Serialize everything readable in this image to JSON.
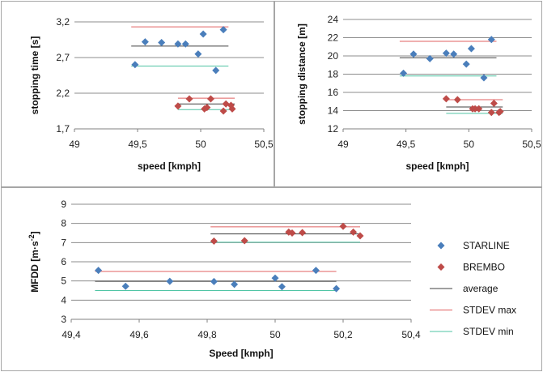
{
  "chart_data": [
    {
      "type": "scatter",
      "xlabel": "speed [kmph]",
      "ylabel": "stopping time [s]",
      "xlim": [
        49,
        50.5
      ],
      "ylim": [
        1.7,
        3.2
      ],
      "xticks": [
        49,
        49.5,
        50,
        50.5
      ],
      "yticks": [
        1.7,
        2.2,
        2.7,
        3.2
      ],
      "xtick_labels": [
        "49",
        "49,5",
        "50",
        "50,5"
      ],
      "ytick_labels": [
        "1,7",
        "2,2",
        "2,7",
        "3,2"
      ],
      "grid": "horizontal",
      "series": [
        {
          "name": "STARLINE",
          "marker": "diamond",
          "color": "#4a7ebb",
          "x": [
            49.48,
            49.56,
            49.69,
            49.82,
            49.88,
            49.98,
            50.02,
            50.12,
            50.18
          ],
          "y": [
            2.6,
            2.92,
            2.91,
            2.89,
            2.89,
            2.75,
            3.03,
            2.52,
            3.09
          ]
        },
        {
          "name": "BREMBO",
          "marker": "diamond",
          "color": "#be4b48",
          "x": [
            49.82,
            49.91,
            50.03,
            50.05,
            50.08,
            50.18,
            50.2,
            50.24,
            50.25
          ],
          "y": [
            2.02,
            2.12,
            1.98,
            2.0,
            2.12,
            1.95,
            2.05,
            2.03,
            1.98
          ]
        }
      ],
      "reference_lines": [
        {
          "name": "average",
          "color": "#404040",
          "segments": [
            {
              "x": [
                49.45,
                50.22
              ],
              "y": 2.86
            },
            {
              "x": [
                49.82,
                50.27
              ],
              "y": 2.05
            }
          ]
        },
        {
          "name": "STDEV max",
          "color": "#e06060",
          "segments": [
            {
              "x": [
                49.45,
                50.22
              ],
              "y": 3.13
            },
            {
              "x": [
                49.82,
                50.27
              ],
              "y": 2.13
            }
          ]
        },
        {
          "name": "STDEV min",
          "color": "#4fc4a4",
          "segments": [
            {
              "x": [
                49.45,
                50.22
              ],
              "y": 2.58
            },
            {
              "x": [
                49.82,
                50.27
              ],
              "y": 1.97
            }
          ]
        }
      ]
    },
    {
      "type": "scatter",
      "xlabel": "speed [kmph]",
      "ylabel": "stopping distance [m]",
      "xlim": [
        49,
        50.5
      ],
      "ylim": [
        12,
        24
      ],
      "xticks": [
        49,
        49.5,
        50,
        50.5
      ],
      "yticks": [
        12,
        14,
        16,
        18,
        20,
        22,
        24
      ],
      "xtick_labels": [
        "49",
        "49,5",
        "50",
        "50,5"
      ],
      "ytick_labels": [
        "12",
        "14",
        "16",
        "18",
        "20",
        "22",
        "24"
      ],
      "grid": "horizontal",
      "series": [
        {
          "name": "STARLINE",
          "marker": "diamond",
          "color": "#4a7ebb",
          "x": [
            49.48,
            49.56,
            49.69,
            49.82,
            49.88,
            49.98,
            50.02,
            50.12,
            50.18
          ],
          "y": [
            18.1,
            20.2,
            19.7,
            20.3,
            20.2,
            19.1,
            20.8,
            17.6,
            21.8
          ]
        },
        {
          "name": "BREMBO",
          "marker": "diamond",
          "color": "#be4b48",
          "x": [
            49.82,
            49.91,
            50.03,
            50.05,
            50.08,
            50.18,
            50.2,
            50.24,
            50.25
          ],
          "y": [
            15.3,
            15.2,
            14.2,
            14.2,
            14.2,
            13.8,
            14.8,
            13.8,
            13.9
          ]
        }
      ],
      "reference_lines": [
        {
          "name": "average",
          "color": "#404040",
          "segments": [
            {
              "x": [
                49.45,
                50.22
              ],
              "y": 19.8
            },
            {
              "x": [
                49.82,
                50.27
              ],
              "y": 14.4
            }
          ]
        },
        {
          "name": "STDEV max",
          "color": "#e06060",
          "segments": [
            {
              "x": [
                49.45,
                50.22
              ],
              "y": 21.6
            },
            {
              "x": [
                49.82,
                50.27
              ],
              "y": 15.2
            }
          ]
        },
        {
          "name": "STDEV min",
          "color": "#4fc4a4",
          "segments": [
            {
              "x": [
                49.45,
                50.22
              ],
              "y": 17.8
            },
            {
              "x": [
                49.82,
                50.27
              ],
              "y": 13.7
            }
          ]
        }
      ]
    },
    {
      "type": "scatter",
      "xlabel": "Speed [kmph]",
      "ylabel_parts": [
        "MFDD [m",
        "·",
        "s",
        "-2",
        "]"
      ],
      "xlim": [
        49.4,
        50.4
      ],
      "ylim": [
        3,
        9
      ],
      "xticks": [
        49.4,
        49.6,
        49.8,
        50,
        50.2,
        50.4
      ],
      "yticks": [
        3,
        4,
        5,
        6,
        7,
        8,
        9
      ],
      "xtick_labels": [
        "49,4",
        "49,6",
        "49,8",
        "50",
        "50,2",
        "50,4"
      ],
      "ytick_labels": [
        "3",
        "4",
        "5",
        "6",
        "7",
        "8",
        "9"
      ],
      "grid": "horizontal",
      "legend": "right",
      "series": [
        {
          "name": "STARLINE",
          "marker": "diamond",
          "color": "#4a7ebb",
          "x": [
            49.48,
            49.56,
            49.69,
            49.82,
            49.88,
            50.0,
            50.02,
            50.12,
            50.18
          ],
          "y": [
            5.55,
            4.72,
            4.98,
            4.97,
            4.82,
            5.15,
            4.7,
            5.55,
            4.6
          ]
        },
        {
          "name": "BREMBO",
          "marker": "diamond",
          "color": "#be4b48",
          "x": [
            49.82,
            49.91,
            50.04,
            50.05,
            50.08,
            50.2,
            50.23,
            50.25
          ],
          "y": [
            7.08,
            7.1,
            7.55,
            7.5,
            7.52,
            7.85,
            7.55,
            7.35
          ]
        }
      ],
      "reference_lines": [
        {
          "name": "average",
          "color": "#404040",
          "segments": [
            {
              "x": [
                49.47,
                50.18
              ],
              "y": 4.98
            },
            {
              "x": [
                49.81,
                50.25
              ],
              "y": 7.45
            }
          ]
        },
        {
          "name": "STDEV max",
          "color": "#e06060",
          "segments": [
            {
              "x": [
                49.47,
                50.18
              ],
              "y": 5.5
            },
            {
              "x": [
                49.81,
                50.25
              ],
              "y": 7.82
            }
          ]
        },
        {
          "name": "STDEV min",
          "color": "#4fc4a4",
          "segments": [
            {
              "x": [
                49.47,
                50.18
              ],
              "y": 4.5
            },
            {
              "x": [
                49.81,
                50.25
              ],
              "y": 7.02
            }
          ]
        }
      ]
    }
  ],
  "legend": {
    "items": [
      {
        "name": "STARLINE",
        "kind": "diamond",
        "color": "#4a7ebb"
      },
      {
        "name": "BREMBO",
        "kind": "diamond",
        "color": "#be4b48"
      },
      {
        "name": "average",
        "kind": "line",
        "color": "#404040"
      },
      {
        "name": "STDEV max",
        "kind": "line",
        "color": "#e06060"
      },
      {
        "name": "STDEV min",
        "kind": "line",
        "color": "#4fc4a4"
      }
    ]
  }
}
